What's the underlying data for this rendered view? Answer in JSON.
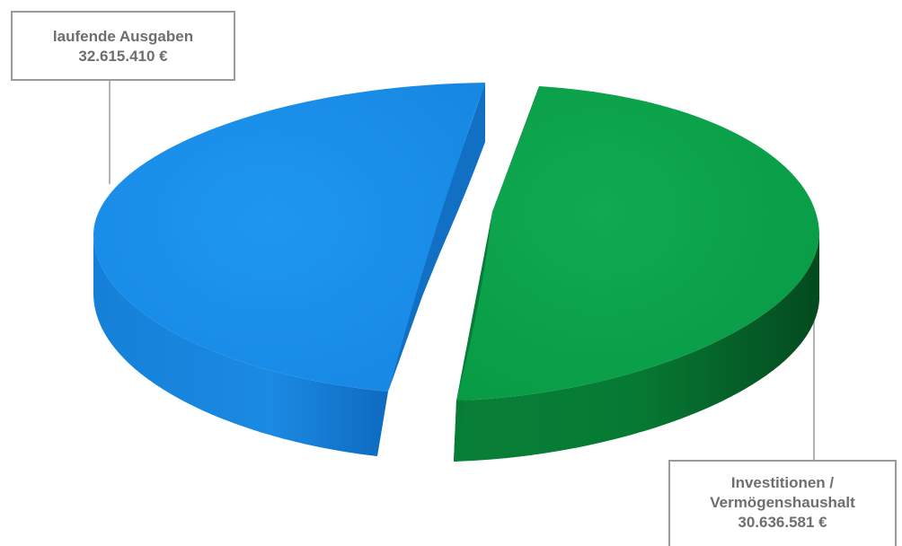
{
  "chart_data": {
    "type": "pie",
    "style": "3d-exploded",
    "slices": [
      {
        "label": "laufende Ausgaben",
        "value": 32615410,
        "value_text": "32.615.410 €",
        "color": "#1a8fe6",
        "dark_color": "#0c64b4"
      },
      {
        "label_lines": [
          "Investitionen /",
          "Vermögenshaushalt"
        ],
        "value": 30636581,
        "value_text": "30.636.581 €",
        "color": "#0aa14a",
        "dark_color": "#05672b"
      }
    ]
  }
}
